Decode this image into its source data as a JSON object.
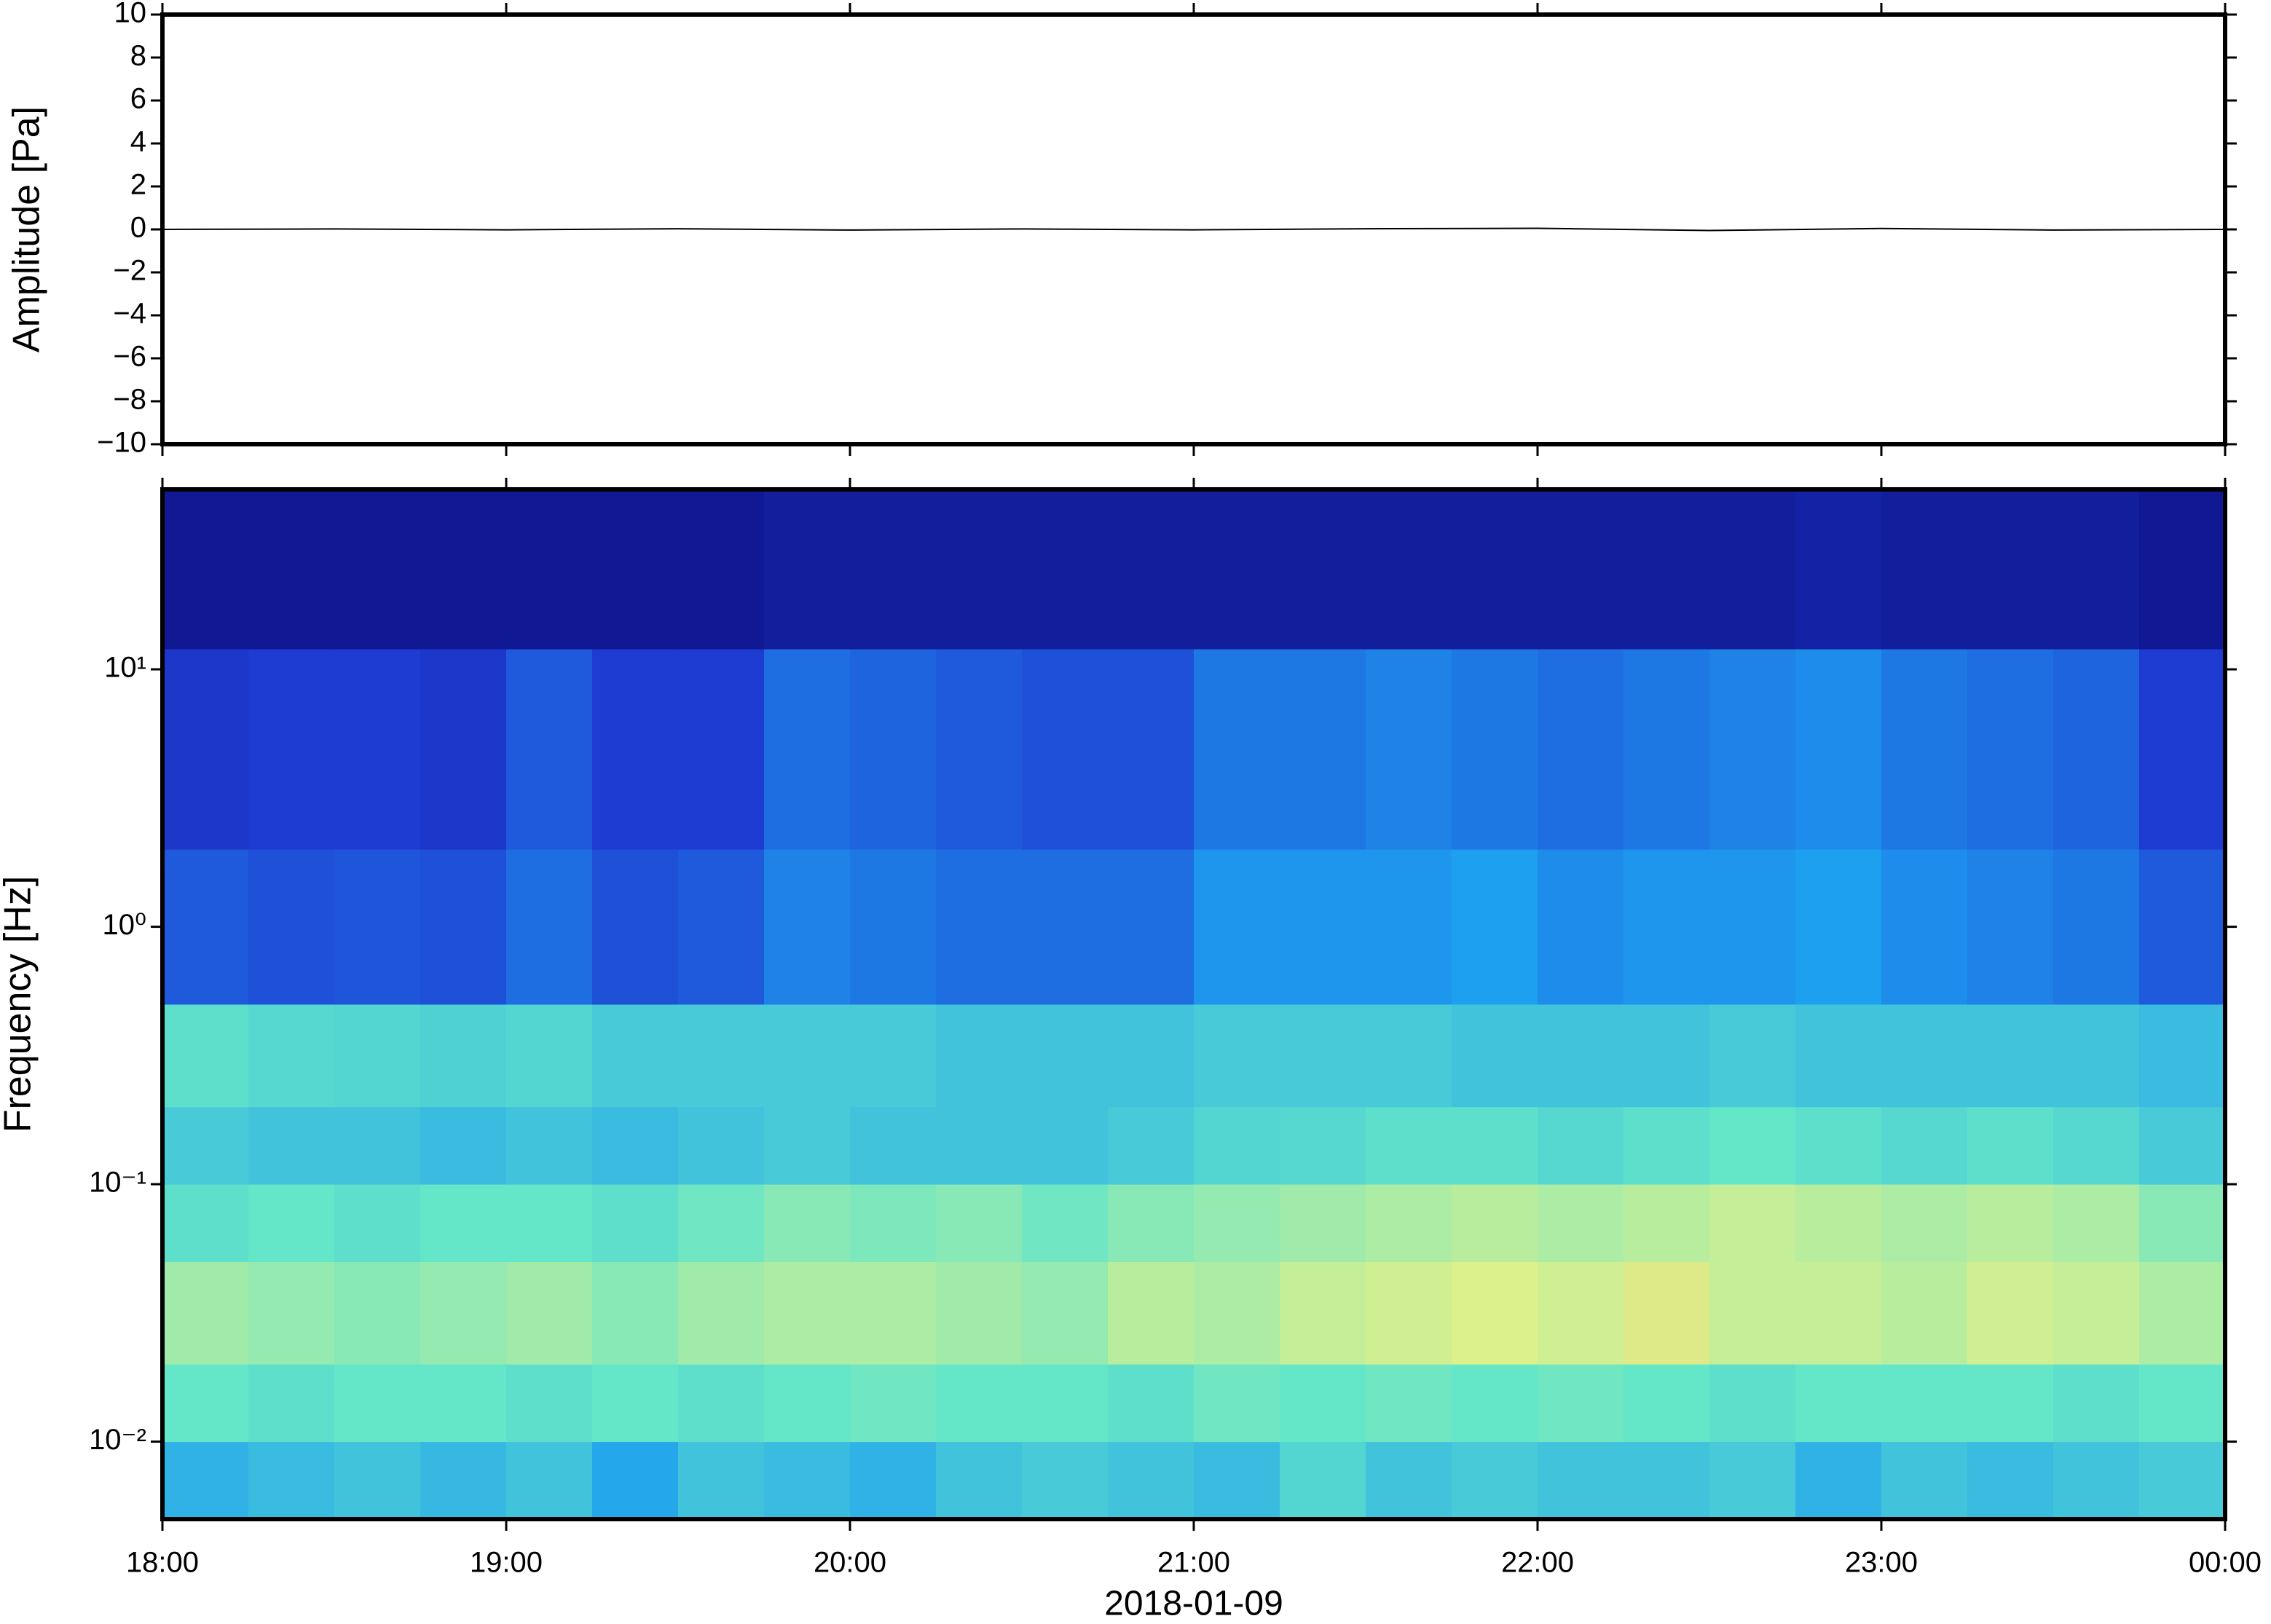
{
  "chart_data": [
    {
      "type": "line",
      "ylabel": "Amplitude [Pa]",
      "x": [
        18,
        18.5,
        19,
        19.5,
        20,
        20.5,
        21,
        21.5,
        22,
        22.5,
        23,
        23.5,
        24
      ],
      "series": [
        {
          "color": "#000000",
          "values": [
            0,
            0.02,
            -0.02,
            0.03,
            -0.03,
            0.02,
            -0.02,
            0.03,
            0.05,
            -0.05,
            0.04,
            -0.03,
            0
          ]
        }
      ],
      "xlim": [
        18,
        24
      ],
      "ylim": [
        -10,
        10
      ],
      "yticks": [
        {
          "value": -10,
          "label": "−10"
        },
        {
          "value": -8,
          "label": "−8"
        },
        {
          "value": -6,
          "label": "−6"
        },
        {
          "value": -4,
          "label": "−4"
        },
        {
          "value": -2,
          "label": "−2"
        },
        0,
        2,
        4,
        6,
        8,
        10
      ]
    },
    {
      "type": "heatmap",
      "ylabel": "Frequency [Hz]",
      "xlabel": "2018-01-09",
      "xlim": [
        18,
        24
      ],
      "xticks": [
        {
          "value": 18,
          "label": "18:00"
        },
        {
          "value": 19,
          "label": "19:00"
        },
        {
          "value": 20,
          "label": "20:00"
        },
        {
          "value": 21,
          "label": "21:00"
        },
        {
          "value": 22,
          "label": "22:00"
        },
        {
          "value": 23,
          "label": "23:00"
        },
        {
          "value": 24,
          "label": "00:00"
        }
      ],
      "ylog": true,
      "ylim": [
        0.005,
        50
      ],
      "yticks": [
        {
          "value": 0.01,
          "label": "10⁻²"
        },
        {
          "value": 0.1,
          "label": "10⁻¹"
        },
        {
          "value": 1,
          "label": "10⁰"
        },
        {
          "value": 10,
          "label": "10¹"
        }
      ],
      "xbins": [
        18,
        18.25,
        18.5,
        18.75,
        19,
        19.25,
        19.5,
        19.75,
        20,
        20.25,
        20.5,
        20.75,
        21,
        21.25,
        21.5,
        21.75,
        22,
        22.25,
        22.5,
        22.75,
        23,
        23.25,
        23.5,
        23.75,
        24
      ],
      "ybins": [
        0.005,
        0.01,
        0.02,
        0.05,
        0.1,
        0.2,
        0.5,
        2,
        12,
        50
      ],
      "colormap": [
        "#0a0a78",
        "#1e3cd2",
        "#1ea0f0",
        "#64e6c8",
        "#dcf08c",
        "#f0b464"
      ],
      "values": [
        [
          0.45,
          0.48,
          0.5,
          0.47,
          0.5,
          0.42,
          0.5,
          0.48,
          0.45,
          0.5,
          0.52,
          0.5,
          0.48,
          0.55,
          0.5,
          0.52,
          0.5,
          0.5,
          0.52,
          0.45,
          0.5,
          0.48,
          0.5,
          0.52
        ],
        [
          0.6,
          0.58,
          0.6,
          0.6,
          0.58,
          0.6,
          0.58,
          0.6,
          0.62,
          0.6,
          0.6,
          0.58,
          0.62,
          0.6,
          0.62,
          0.6,
          0.62,
          0.6,
          0.58,
          0.6,
          0.6,
          0.6,
          0.58,
          0.6
        ],
        [
          0.7,
          0.68,
          0.66,
          0.68,
          0.7,
          0.66,
          0.7,
          0.72,
          0.72,
          0.7,
          0.68,
          0.74,
          0.72,
          0.76,
          0.78,
          0.8,
          0.78,
          0.82,
          0.76,
          0.76,
          0.74,
          0.78,
          0.76,
          0.72
        ],
        [
          0.58,
          0.6,
          0.58,
          0.6,
          0.6,
          0.58,
          0.62,
          0.66,
          0.64,
          0.66,
          0.62,
          0.66,
          0.68,
          0.7,
          0.72,
          0.74,
          0.72,
          0.74,
          0.76,
          0.74,
          0.72,
          0.74,
          0.72,
          0.66
        ],
        [
          0.52,
          0.5,
          0.5,
          0.48,
          0.5,
          0.48,
          0.5,
          0.52,
          0.5,
          0.5,
          0.5,
          0.52,
          0.55,
          0.56,
          0.58,
          0.58,
          0.56,
          0.58,
          0.6,
          0.58,
          0.56,
          0.58,
          0.56,
          0.52
        ],
        [
          0.58,
          0.56,
          0.55,
          0.54,
          0.55,
          0.52,
          0.52,
          0.52,
          0.52,
          0.5,
          0.5,
          0.5,
          0.52,
          0.52,
          0.52,
          0.5,
          0.5,
          0.5,
          0.52,
          0.5,
          0.5,
          0.5,
          0.5,
          0.48
        ],
        [
          0.26,
          0.24,
          0.25,
          0.24,
          0.3,
          0.24,
          0.26,
          0.34,
          0.32,
          0.3,
          0.3,
          0.3,
          0.38,
          0.38,
          0.38,
          0.4,
          0.36,
          0.38,
          0.38,
          0.4,
          0.36,
          0.34,
          0.32,
          0.26
        ],
        [
          0.18,
          0.2,
          0.2,
          0.18,
          0.26,
          0.2,
          0.2,
          0.3,
          0.28,
          0.26,
          0.24,
          0.24,
          0.32,
          0.32,
          0.34,
          0.32,
          0.3,
          0.32,
          0.34,
          0.36,
          0.32,
          0.3,
          0.28,
          0.2
        ],
        [
          0.06,
          0.06,
          0.06,
          0.06,
          0.06,
          0.06,
          0.06,
          0.08,
          0.08,
          0.08,
          0.08,
          0.08,
          0.08,
          0.08,
          0.08,
          0.08,
          0.08,
          0.08,
          0.08,
          0.1,
          0.08,
          0.08,
          0.08,
          0.06
        ]
      ]
    }
  ]
}
